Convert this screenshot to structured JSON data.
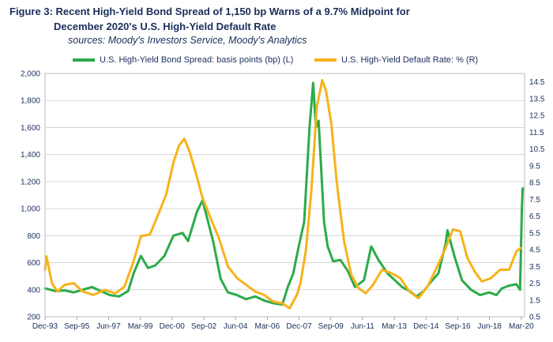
{
  "title_line1": "Figure 3: Recent High-Yield Bond Spread of 1,150 bp Warns of a 9.7% Midpoint for",
  "title_line2": "December 2020's U.S. High-Yield Default Rate",
  "sources": "sources: Moody's Investors Service, Moody's Analytics",
  "colors": {
    "spread": "#2bab4a",
    "default": "#f7b21a",
    "grid": "#cfcfcf",
    "text": "#1a2e5a"
  },
  "chart_data": {
    "type": "line",
    "xlabel": "",
    "x_ticks": [
      "Dec-93",
      "Sep-95",
      "Jun-97",
      "Mar-99",
      "Dec-00",
      "Sep-02",
      "Jun-04",
      "Mar-06",
      "Dec-07",
      "Sep-09",
      "Jun-11",
      "Mar-13",
      "Dec-14",
      "Sep-16",
      "Jun-18",
      "Mar-20"
    ],
    "x_tick_pos": [
      1993.92,
      1995.67,
      1997.42,
      1999.17,
      2000.92,
      2002.67,
      2004.42,
      2006.17,
      2007.92,
      2009.67,
      2011.42,
      2013.17,
      2014.92,
      2016.67,
      2018.42,
      2020.17
    ],
    "xlim": [
      1993.92,
      2020.35
    ],
    "y_left": {
      "label": "basis points (bp)",
      "lim": [
        200,
        2000
      ],
      "ticks": [
        200,
        400,
        600,
        800,
        1000,
        1200,
        1400,
        1600,
        1800,
        2000
      ],
      "tick_labels": [
        "200",
        "400",
        "600",
        "800",
        "1,000",
        "1,200",
        "1,400",
        "1,600",
        "1,800",
        "2,000"
      ]
    },
    "y_right": {
      "label": "%",
      "lim": [
        0.5,
        15
      ],
      "ticks": [
        0.5,
        1.5,
        2.5,
        3.5,
        4.5,
        5.5,
        6.5,
        7.5,
        8.5,
        9.5,
        10.5,
        11.5,
        12.5,
        13.5,
        14.5
      ],
      "tick_labels": [
        "0.5",
        "1.5",
        "2.5",
        "3.5",
        "4.5",
        "5.5",
        "6.5",
        "7.5",
        "8.5",
        "9.5",
        "10.5",
        "11.5",
        "12.5",
        "13.5",
        "14.5"
      ]
    },
    "series": [
      {
        "name": "U.S. High-Yield Bond Spread: basis points (bp) (L)",
        "axis": "left",
        "x": [
          1993.92,
          1994.5,
          1995.0,
          1995.5,
          1996.0,
          1996.5,
          1997.0,
          1997.5,
          1998.0,
          1998.5,
          1998.8,
          1999.2,
          1999.6,
          2000.0,
          2000.5,
          2001.0,
          2001.5,
          2001.8,
          2002.3,
          2002.6,
          2002.8,
          2003.2,
          2003.6,
          2004.0,
          2004.5,
          2005.0,
          2005.5,
          2006.0,
          2006.5,
          2007.0,
          2007.3,
          2007.6,
          2007.9,
          2008.2,
          2008.5,
          2008.7,
          2008.85,
          2009.0,
          2009.1,
          2009.3,
          2009.5,
          2009.8,
          2010.2,
          2010.6,
          2011.0,
          2011.5,
          2011.9,
          2012.3,
          2012.8,
          2013.2,
          2013.6,
          2014.0,
          2014.4,
          2014.8,
          2015.2,
          2015.6,
          2016.0,
          2016.1,
          2016.5,
          2016.9,
          2017.4,
          2017.9,
          2018.4,
          2018.8,
          2019.1,
          2019.5,
          2019.9,
          2020.0,
          2020.1,
          2020.2,
          2020.25
        ],
        "values": [
          410,
          390,
          395,
          380,
          400,
          420,
          390,
          360,
          350,
          390,
          520,
          650,
          560,
          580,
          650,
          800,
          820,
          760,
          980,
          1060,
          960,
          750,
          480,
          380,
          360,
          330,
          350,
          320,
          300,
          290,
          420,
          520,
          720,
          900,
          1600,
          1930,
          1600,
          1650,
          1400,
          900,
          720,
          610,
          620,
          540,
          420,
          470,
          720,
          620,
          520,
          470,
          420,
          390,
          350,
          390,
          460,
          520,
          740,
          840,
          640,
          470,
          400,
          360,
          380,
          360,
          410,
          430,
          440,
          420,
          400,
          1000,
          1150
        ]
      },
      {
        "name": "U.S. High-Yield Default Rate: % (R)",
        "axis": "right",
        "x": [
          1993.92,
          1994.0,
          1994.3,
          1994.6,
          1995.0,
          1995.5,
          1996.0,
          1996.6,
          1997.2,
          1997.8,
          1998.3,
          1998.8,
          1999.2,
          1999.7,
          2000.2,
          2000.6,
          2001.0,
          2001.3,
          2001.6,
          2001.9,
          2002.3,
          2002.6,
          2003.0,
          2003.5,
          2004.0,
          2004.5,
          2005.0,
          2005.5,
          2006.0,
          2006.5,
          2007.0,
          2007.4,
          2007.8,
          2008.0,
          2008.3,
          2008.6,
          2008.9,
          2009.2,
          2009.4,
          2009.7,
          2010.0,
          2010.4,
          2010.8,
          2011.2,
          2011.6,
          2012.0,
          2012.5,
          2013.0,
          2013.5,
          2014.0,
          2014.5,
          2015.0,
          2015.5,
          2016.0,
          2016.4,
          2016.8,
          2017.2,
          2017.6,
          2018.0,
          2018.5,
          2019.0,
          2019.5,
          2019.9,
          2020.15
        ],
        "values": [
          3.3,
          4.1,
          2.5,
          2.0,
          2.4,
          2.5,
          2.0,
          1.8,
          2.1,
          1.9,
          2.3,
          3.8,
          5.3,
          5.4,
          6.7,
          7.8,
          9.7,
          10.7,
          11.1,
          10.3,
          8.8,
          7.6,
          6.5,
          5.2,
          3.5,
          2.8,
          2.4,
          2.0,
          1.8,
          1.4,
          1.3,
          1.0,
          1.8,
          2.5,
          4.5,
          8.0,
          13.0,
          14.6,
          14.0,
          12.0,
          8.5,
          5.0,
          3.0,
          2.2,
          1.9,
          2.4,
          3.3,
          3.1,
          2.8,
          2.0,
          1.6,
          2.3,
          3.4,
          4.6,
          5.7,
          5.6,
          4.0,
          3.2,
          2.6,
          2.8,
          3.3,
          3.3,
          4.4,
          4.6
        ]
      }
    ]
  }
}
